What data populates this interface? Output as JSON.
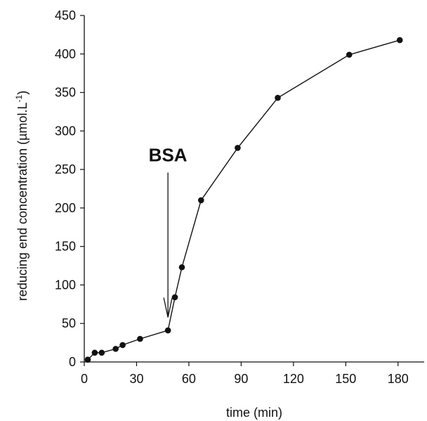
{
  "chart_data": {
    "type": "line",
    "xlabel": "time (min)",
    "ylabel": "reducing end concentration (µmol.L",
    "ylabel_sup": "-1",
    "ylabel_tail": ")",
    "xlim": [
      0,
      195
    ],
    "ylim": [
      0,
      450
    ],
    "xticks": [
      0,
      30,
      60,
      90,
      120,
      150,
      180
    ],
    "yticks": [
      0,
      50,
      100,
      150,
      200,
      250,
      300,
      350,
      400,
      450
    ],
    "grid": false,
    "series": [
      {
        "color": "#111111",
        "points": [
          [
            2,
            3
          ],
          [
            6,
            12
          ],
          [
            10,
            12
          ],
          [
            18,
            17
          ],
          [
            22,
            22
          ],
          [
            32,
            30
          ],
          [
            48,
            41
          ],
          [
            52,
            84
          ],
          [
            56,
            123
          ],
          [
            67,
            210
          ],
          [
            88,
            278
          ],
          [
            111,
            343
          ],
          [
            152,
            399
          ],
          [
            181,
            418
          ]
        ]
      }
    ],
    "annotation": {
      "text": "BSA",
      "arrow_x": 48,
      "arrow_y_from": 246,
      "arrow_y_to": 58
    }
  }
}
